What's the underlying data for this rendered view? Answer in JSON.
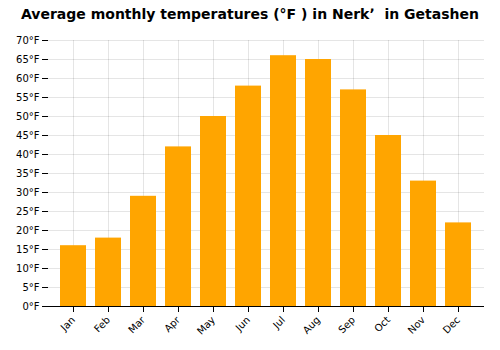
{
  "chart_data": {
    "type": "bar",
    "title": "Average monthly temperatures (°F ) in Nerkʼ  in Getashen",
    "categories": [
      "Jan",
      "Feb",
      "Mar",
      "Apr",
      "May",
      "Jun",
      "Jul",
      "Aug",
      "Sep",
      "Oct",
      "Nov",
      "Dec"
    ],
    "values": [
      16,
      18,
      29,
      42,
      50,
      58,
      66,
      65,
      57,
      45,
      33,
      22
    ],
    "color": "#FFA500",
    "ylim": [
      0,
      70
    ],
    "yticks": [
      {
        "value": 0,
        "label": "0°F"
      },
      {
        "value": 5,
        "label": "5°F"
      },
      {
        "value": 10,
        "label": "10°F"
      },
      {
        "value": 15,
        "label": "15°F"
      },
      {
        "value": 20,
        "label": "20°F"
      },
      {
        "value": 25,
        "label": "25°F"
      },
      {
        "value": 30,
        "label": "30°F"
      },
      {
        "value": 35,
        "label": "35°F"
      },
      {
        "value": 40,
        "label": "40°F"
      },
      {
        "value": 45,
        "label": "45°F"
      },
      {
        "value": 50,
        "label": "50°F"
      },
      {
        "value": 55,
        "label": "55°F"
      },
      {
        "value": 60,
        "label": "60°F"
      },
      {
        "value": 65,
        "label": "65°F"
      },
      {
        "value": 70,
        "label": "70°F"
      }
    ],
    "grid": true
  }
}
